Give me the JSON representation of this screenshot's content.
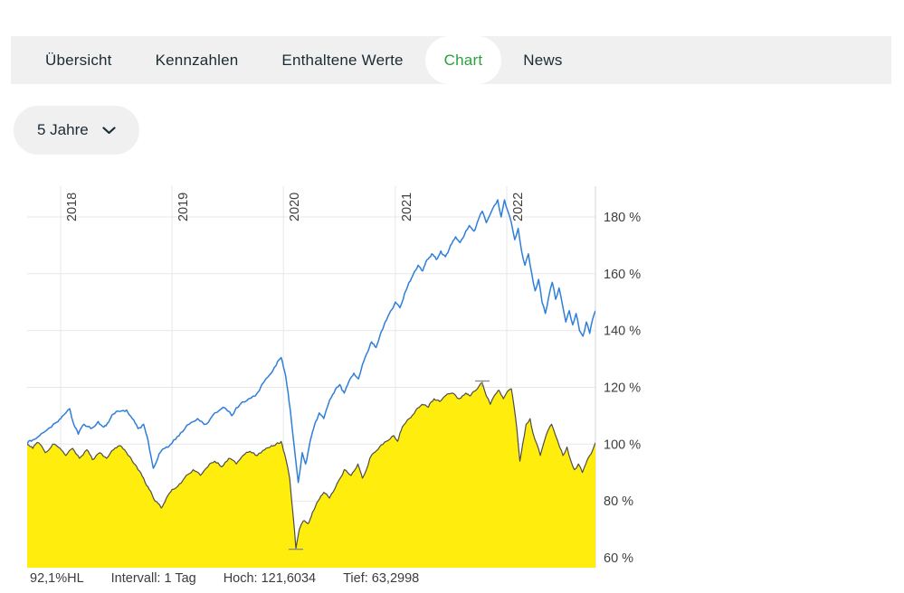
{
  "tabs": {
    "items": [
      {
        "label": "Übersicht",
        "active": false
      },
      {
        "label": "Kennzahlen",
        "active": false
      },
      {
        "label": "Enthaltene Werte",
        "active": false
      },
      {
        "label": "Chart",
        "active": true
      },
      {
        "label": "News",
        "active": false
      }
    ]
  },
  "period_selector": {
    "label": "5 Jahre",
    "icon": "chevron-down-icon"
  },
  "status_bar": {
    "range_label": "92,1%HL",
    "interval": "Intervall: 1 Tag",
    "high": "Hoch: 121,6034",
    "low": "Tief: 63,2998"
  },
  "colors": {
    "tabbar_bg": "#f0f0f1",
    "tab_text": "#1b2b33",
    "tab_active_text": "#2aa13c",
    "grid": "#e7e7e7",
    "axis_line": "#d6d6d6",
    "axis_text": "#3f3f3f",
    "benchmark_line": "#2f7ed8",
    "fund_fill": "#ffed00",
    "fund_stroke": "#4d4d4d",
    "marker": "#8c8c8c"
  },
  "chart_data": {
    "type": "line",
    "title": "",
    "x_axis": {
      "tick_labels": [
        "2018",
        "2019",
        "2020",
        "2021",
        "2022"
      ],
      "tick_positions": [
        0.059,
        0.255,
        0.451,
        0.648,
        0.844
      ],
      "range_t": [
        0,
        1
      ]
    },
    "y_axis": {
      "position": "right",
      "unit": "%",
      "tick_values": [
        180,
        160,
        140,
        120,
        100,
        80,
        60
      ],
      "tick_labels": [
        "180 %",
        "160 %",
        "140 %",
        "120 %",
        "100 %",
        "80 %",
        "60 %"
      ],
      "value_range": [
        56.5,
        191
      ]
    },
    "grid": true,
    "high": 121.6034,
    "low": 63.2998,
    "markers": [
      {
        "name": "hoch-marker",
        "t": 0.801,
        "value": 121.6034,
        "kind": "high"
      },
      {
        "name": "tief-marker",
        "t": 0.473,
        "value": 63.2998,
        "kind": "low"
      }
    ],
    "series": [
      {
        "name": "fund",
        "type": "area",
        "fill": "#ffed00",
        "stroke": "#4d4d4d",
        "stroke_width": 1.2,
        "noise_amp": 1.25,
        "noise_seed": 13,
        "clamp": [
          63.1,
          121.8
        ],
        "points": [
          [
            0,
            100
          ],
          [
            0.01,
            98.5
          ],
          [
            0.02,
            100.5
          ],
          [
            0.032,
            97
          ],
          [
            0.045,
            100
          ],
          [
            0.058,
            98.5
          ],
          [
            0.068,
            96
          ],
          [
            0.08,
            98.5
          ],
          [
            0.092,
            95
          ],
          [
            0.105,
            98
          ],
          [
            0.115,
            94.5
          ],
          [
            0.128,
            97
          ],
          [
            0.14,
            95
          ],
          [
            0.152,
            98
          ],
          [
            0.163,
            99.5
          ],
          [
            0.175,
            97
          ],
          [
            0.185,
            94
          ],
          [
            0.195,
            91
          ],
          [
            0.205,
            88
          ],
          [
            0.215,
            84
          ],
          [
            0.225,
            80
          ],
          [
            0.236,
            77.5
          ],
          [
            0.245,
            81
          ],
          [
            0.255,
            84
          ],
          [
            0.268,
            86
          ],
          [
            0.28,
            89
          ],
          [
            0.292,
            91
          ],
          [
            0.305,
            89
          ],
          [
            0.318,
            92
          ],
          [
            0.33,
            94
          ],
          [
            0.342,
            92
          ],
          [
            0.355,
            95
          ],
          [
            0.368,
            93
          ],
          [
            0.38,
            96
          ],
          [
            0.392,
            97.5
          ],
          [
            0.405,
            96
          ],
          [
            0.418,
            98
          ],
          [
            0.43,
            99.5
          ],
          [
            0.447,
            101
          ],
          [
            0.455,
            95
          ],
          [
            0.462,
            88
          ],
          [
            0.468,
            75
          ],
          [
            0.473,
            63.3
          ],
          [
            0.479,
            70
          ],
          [
            0.486,
            73
          ],
          [
            0.494,
            72
          ],
          [
            0.502,
            76
          ],
          [
            0.512,
            80
          ],
          [
            0.522,
            83
          ],
          [
            0.532,
            81
          ],
          [
            0.545,
            86
          ],
          [
            0.558,
            91
          ],
          [
            0.57,
            89
          ],
          [
            0.582,
            93
          ],
          [
            0.59,
            88
          ],
          [
            0.597,
            91
          ],
          [
            0.603,
            95
          ],
          [
            0.61,
            97
          ],
          [
            0.62,
            99
          ],
          [
            0.632,
            101
          ],
          [
            0.645,
            103
          ],
          [
            0.652,
            101
          ],
          [
            0.66,
            106
          ],
          [
            0.672,
            109
          ],
          [
            0.684,
            112
          ],
          [
            0.695,
            114
          ],
          [
            0.706,
            113
          ],
          [
            0.716,
            116
          ],
          [
            0.726,
            115
          ],
          [
            0.736,
            117
          ],
          [
            0.748,
            118
          ],
          [
            0.76,
            116
          ],
          [
            0.772,
            118
          ],
          [
            0.78,
            117
          ],
          [
            0.79,
            119
          ],
          [
            0.801,
            121.6
          ],
          [
            0.808,
            117
          ],
          [
            0.815,
            114
          ],
          [
            0.822,
            117
          ],
          [
            0.83,
            119
          ],
          [
            0.838,
            116
          ],
          [
            0.845,
            118.5
          ],
          [
            0.852,
            119.5
          ],
          [
            0.857,
            113
          ],
          [
            0.862,
            105
          ],
          [
            0.867,
            94
          ],
          [
            0.872,
            100
          ],
          [
            0.878,
            107
          ],
          [
            0.885,
            109
          ],
          [
            0.89,
            104
          ],
          [
            0.897,
            100
          ],
          [
            0.903,
            96
          ],
          [
            0.91,
            101
          ],
          [
            0.917,
            105
          ],
          [
            0.923,
            107
          ],
          [
            0.93,
            103
          ],
          [
            0.937,
            99
          ],
          [
            0.943,
            96
          ],
          [
            0.95,
            99
          ],
          [
            0.957,
            94
          ],
          [
            0.963,
            91
          ],
          [
            0.97,
            93
          ],
          [
            0.977,
            90
          ],
          [
            0.983,
            93
          ],
          [
            0.99,
            96
          ],
          [
            1,
            100.5
          ]
        ]
      },
      {
        "name": "benchmark",
        "type": "line",
        "stroke": "#2f7ed8",
        "stroke_width": 1.5,
        "noise_amp": 1.45,
        "noise_seed": 7,
        "clamp": [
          85.5,
          186.5
        ],
        "points": [
          [
            0,
            100
          ],
          [
            0.01,
            101.5
          ],
          [
            0.022,
            103
          ],
          [
            0.035,
            105
          ],
          [
            0.05,
            107.5
          ],
          [
            0.059,
            109
          ],
          [
            0.068,
            111
          ],
          [
            0.075,
            112.5
          ],
          [
            0.082,
            107
          ],
          [
            0.09,
            103.5
          ],
          [
            0.1,
            107
          ],
          [
            0.112,
            105.5
          ],
          [
            0.125,
            108
          ],
          [
            0.135,
            106
          ],
          [
            0.151,
            110.5
          ],
          [
            0.163,
            111.5
          ],
          [
            0.175,
            112
          ],
          [
            0.185,
            109
          ],
          [
            0.195,
            105.5
          ],
          [
            0.205,
            107
          ],
          [
            0.213,
            101
          ],
          [
            0.222,
            91.5
          ],
          [
            0.232,
            96.5
          ],
          [
            0.245,
            99
          ],
          [
            0.258,
            101.5
          ],
          [
            0.27,
            104
          ],
          [
            0.285,
            107
          ],
          [
            0.3,
            109
          ],
          [
            0.315,
            107
          ],
          [
            0.33,
            111
          ],
          [
            0.345,
            113
          ],
          [
            0.36,
            110
          ],
          [
            0.375,
            114
          ],
          [
            0.39,
            116
          ],
          [
            0.405,
            118
          ],
          [
            0.42,
            123
          ],
          [
            0.435,
            127
          ],
          [
            0.447,
            130.5
          ],
          [
            0.455,
            124
          ],
          [
            0.463,
            112
          ],
          [
            0.47,
            99
          ],
          [
            0.477,
            86.5
          ],
          [
            0.484,
            97
          ],
          [
            0.49,
            93
          ],
          [
            0.498,
            101
          ],
          [
            0.506,
            107
          ],
          [
            0.514,
            111
          ],
          [
            0.522,
            109
          ],
          [
            0.53,
            114
          ],
          [
            0.54,
            118
          ],
          [
            0.55,
            121
          ],
          [
            0.558,
            118
          ],
          [
            0.566,
            122
          ],
          [
            0.575,
            125
          ],
          [
            0.583,
            123
          ],
          [
            0.59,
            128
          ],
          [
            0.598,
            132
          ],
          [
            0.606,
            136
          ],
          [
            0.614,
            134
          ],
          [
            0.622,
            139
          ],
          [
            0.63,
            143
          ],
          [
            0.64,
            147
          ],
          [
            0.648,
            150
          ],
          [
            0.656,
            148
          ],
          [
            0.664,
            153
          ],
          [
            0.672,
            157
          ],
          [
            0.68,
            160
          ],
          [
            0.688,
            163
          ],
          [
            0.696,
            161
          ],
          [
            0.704,
            165
          ],
          [
            0.712,
            167
          ],
          [
            0.72,
            165
          ],
          [
            0.728,
            168
          ],
          [
            0.736,
            166
          ],
          [
            0.745,
            170
          ],
          [
            0.754,
            173
          ],
          [
            0.762,
            171
          ],
          [
            0.77,
            174
          ],
          [
            0.778,
            177
          ],
          [
            0.786,
            175
          ],
          [
            0.794,
            179
          ],
          [
            0.801,
            182
          ],
          [
            0.808,
            178
          ],
          [
            0.815,
            181
          ],
          [
            0.822,
            184
          ],
          [
            0.828,
            186
          ],
          [
            0.834,
            180
          ],
          [
            0.84,
            186
          ],
          [
            0.846,
            182
          ],
          [
            0.852,
            178
          ],
          [
            0.858,
            172
          ],
          [
            0.864,
            176
          ],
          [
            0.87,
            168
          ],
          [
            0.876,
            163
          ],
          [
            0.882,
            167
          ],
          [
            0.888,
            160
          ],
          [
            0.894,
            154
          ],
          [
            0.9,
            158
          ],
          [
            0.906,
            150
          ],
          [
            0.912,
            146
          ],
          [
            0.918,
            152
          ],
          [
            0.924,
            157
          ],
          [
            0.93,
            151
          ],
          [
            0.936,
            155
          ],
          [
            0.942,
            149
          ],
          [
            0.948,
            143
          ],
          [
            0.954,
            147
          ],
          [
            0.96,
            142
          ],
          [
            0.966,
            146
          ],
          [
            0.972,
            140
          ],
          [
            0.978,
            138
          ],
          [
            0.984,
            143
          ],
          [
            0.99,
            139
          ],
          [
            0.995,
            144
          ],
          [
            1,
            147
          ]
        ]
      }
    ]
  }
}
